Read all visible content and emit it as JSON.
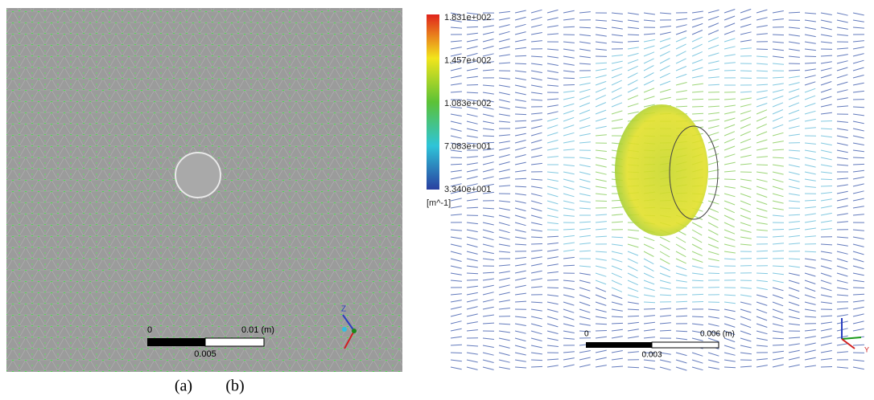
{
  "panel_a": {
    "label": "(a)",
    "scale_bar": {
      "start": "0",
      "end": "0.01 (m)",
      "mid": "0.005"
    },
    "axes": {
      "up": "Z"
    }
  },
  "panel_b": {
    "label": "(b)",
    "colorbar": {
      "ticks": [
        "1.831e+002",
        "1.457e+002",
        "1.083e+002",
        "7.083e+001",
        "3.340e+001"
      ],
      "unit": "[m^-1]"
    },
    "scale_bar": {
      "start": "0",
      "end": "0.006 (m)",
      "mid": "0.003"
    },
    "axes": {
      "side": "Y"
    }
  }
}
